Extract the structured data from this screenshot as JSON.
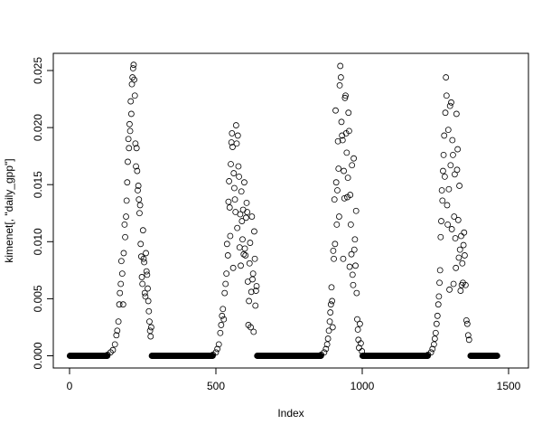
{
  "chart_data": {
    "type": "scatter",
    "title": "",
    "xlabel": "Index",
    "ylabel": "kimenet[, \"daily_gpp\"]",
    "xlim": [
      0,
      1500
    ],
    "ylim": [
      0,
      0.025
    ],
    "x_ticks": [
      "0",
      "500",
      "1000",
      "1500"
    ],
    "y_ticks": [
      "0.000",
      "0.005",
      "0.010",
      "0.015",
      "0.020",
      "0.025"
    ],
    "grid": false,
    "marker": "open-circle",
    "zero_index_ranges": [
      [
        1,
        129
      ],
      [
        281,
        489
      ],
      [
        641,
        859
      ],
      [
        1001,
        1224
      ],
      [
        1370,
        1461
      ]
    ],
    "points": [
      [
        130,
        0.0001
      ],
      [
        140,
        0.0003
      ],
      [
        148,
        0.0005
      ],
      [
        155,
        0.001
      ],
      [
        160,
        0.0018
      ],
      [
        163,
        0.0022
      ],
      [
        167,
        0.003
      ],
      [
        170,
        0.0045
      ],
      [
        172,
        0.0055
      ],
      [
        175,
        0.0063
      ],
      [
        177,
        0.0083
      ],
      [
        180,
        0.0072
      ],
      [
        183,
        0.0045
      ],
      [
        185,
        0.009
      ],
      [
        188,
        0.0115
      ],
      [
        190,
        0.0104
      ],
      [
        193,
        0.0122
      ],
      [
        195,
        0.0136
      ],
      [
        197,
        0.0152
      ],
      [
        199,
        0.017
      ],
      [
        201,
        0.019
      ],
      [
        203,
        0.0182
      ],
      [
        205,
        0.0203
      ],
      [
        207,
        0.0197
      ],
      [
        209,
        0.0223
      ],
      [
        211,
        0.0212
      ],
      [
        213,
        0.0238
      ],
      [
        215,
        0.0244
      ],
      [
        217,
        0.0252
      ],
      [
        219,
        0.0255
      ],
      [
        221,
        0.0242
      ],
      [
        223,
        0.0228
      ],
      [
        225,
        0.0186
      ],
      [
        227,
        0.0166
      ],
      [
        229,
        0.0182
      ],
      [
        231,
        0.0162
      ],
      [
        233,
        0.0145
      ],
      [
        235,
        0.0149
      ],
      [
        237,
        0.0137
      ],
      [
        239,
        0.0125
      ],
      [
        241,
        0.0132
      ],
      [
        243,
        0.0098
      ],
      [
        245,
        0.0087
      ],
      [
        247,
        0.0069
      ],
      [
        249,
        0.0063
      ],
      [
        251,
        0.011
      ],
      [
        253,
        0.0085
      ],
      [
        255,
        0.0082
      ],
      [
        257,
        0.0055
      ],
      [
        259,
        0.0052
      ],
      [
        261,
        0.009
      ],
      [
        263,
        0.0074
      ],
      [
        265,
        0.0071
      ],
      [
        267,
        0.0059
      ],
      [
        269,
        0.0048
      ],
      [
        271,
        0.0039
      ],
      [
        273,
        0.003
      ],
      [
        275,
        0.0022
      ],
      [
        277,
        0.0017
      ],
      [
        279,
        0.0025
      ],
      [
        490,
        0.0001
      ],
      [
        500,
        0.0003
      ],
      [
        505,
        0.0006
      ],
      [
        510,
        0.001
      ],
      [
        515,
        0.002
      ],
      [
        518,
        0.0027
      ],
      [
        521,
        0.0035
      ],
      [
        524,
        0.0041
      ],
      [
        527,
        0.0032
      ],
      [
        530,
        0.0055
      ],
      [
        533,
        0.0063
      ],
      [
        536,
        0.0072
      ],
      [
        538,
        0.0098
      ],
      [
        541,
        0.0088
      ],
      [
        543,
        0.0135
      ],
      [
        545,
        0.0153
      ],
      [
        547,
        0.013
      ],
      [
        549,
        0.0105
      ],
      [
        551,
        0.0168
      ],
      [
        553,
        0.0187
      ],
      [
        555,
        0.0195
      ],
      [
        557,
        0.0183
      ],
      [
        559,
        0.0077
      ],
      [
        561,
        0.016
      ],
      [
        563,
        0.0147
      ],
      [
        565,
        0.0137
      ],
      [
        567,
        0.0126
      ],
      [
        569,
        0.0202
      ],
      [
        571,
        0.0186
      ],
      [
        573,
        0.0112
      ],
      [
        575,
        0.0193
      ],
      [
        577,
        0.0166
      ],
      [
        579,
        0.0157
      ],
      [
        581,
        0.0095
      ],
      [
        583,
        0.0124
      ],
      [
        585,
        0.0079
      ],
      [
        587,
        0.0144
      ],
      [
        589,
        0.0118
      ],
      [
        591,
        0.0102
      ],
      [
        593,
        0.0128
      ],
      [
        595,
        0.0089
      ],
      [
        597,
        0.0152
      ],
      [
        599,
        0.0094
      ],
      [
        601,
        0.0088
      ],
      [
        603,
        0.0121
      ],
      [
        605,
        0.0134
      ],
      [
        607,
        0.0126
      ],
      [
        609,
        0.0065
      ],
      [
        611,
        0.0027
      ],
      [
        613,
        0.0048
      ],
      [
        615,
        0.0081
      ],
      [
        617,
        0.0099
      ],
      [
        619,
        0.0025
      ],
      [
        621,
        0.0056
      ],
      [
        623,
        0.0122
      ],
      [
        625,
        0.0067
      ],
      [
        627,
        0.0072
      ],
      [
        629,
        0.0021
      ],
      [
        631,
        0.0109
      ],
      [
        633,
        0.0085
      ],
      [
        635,
        0.0044
      ],
      [
        637,
        0.0057
      ],
      [
        639,
        0.0061
      ],
      [
        860,
        0.0001
      ],
      [
        870,
        0.0003
      ],
      [
        876,
        0.0006
      ],
      [
        880,
        0.001
      ],
      [
        883,
        0.0015
      ],
      [
        886,
        0.0022
      ],
      [
        889,
        0.003
      ],
      [
        891,
        0.0038
      ],
      [
        893,
        0.0045
      ],
      [
        895,
        0.006
      ],
      [
        897,
        0.0048
      ],
      [
        899,
        0.0025
      ],
      [
        901,
        0.0092
      ],
      [
        903,
        0.0085
      ],
      [
        905,
        0.0137
      ],
      [
        907,
        0.0098
      ],
      [
        909,
        0.0215
      ],
      [
        911,
        0.0152
      ],
      [
        913,
        0.0115
      ],
      [
        915,
        0.0145
      ],
      [
        917,
        0.0188
      ],
      [
        919,
        0.0164
      ],
      [
        921,
        0.0122
      ],
      [
        923,
        0.0237
      ],
      [
        925,
        0.0254
      ],
      [
        927,
        0.0244
      ],
      [
        929,
        0.0205
      ],
      [
        931,
        0.0193
      ],
      [
        933,
        0.0189
      ],
      [
        935,
        0.0085
      ],
      [
        937,
        0.0162
      ],
      [
        939,
        0.0138
      ],
      [
        941,
        0.0226
      ],
      [
        943,
        0.0228
      ],
      [
        945,
        0.0195
      ],
      [
        947,
        0.0178
      ],
      [
        949,
        0.0139
      ],
      [
        951,
        0.0156
      ],
      [
        953,
        0.0213
      ],
      [
        955,
        0.0197
      ],
      [
        957,
        0.0078
      ],
      [
        959,
        0.0141
      ],
      [
        961,
        0.0115
      ],
      [
        963,
        0.0089
      ],
      [
        965,
        0.0167
      ],
      [
        967,
        0.0071
      ],
      [
        969,
        0.0062
      ],
      [
        971,
        0.0173
      ],
      [
        973,
        0.0093
      ],
      [
        975,
        0.0102
      ],
      [
        977,
        0.0079
      ],
      [
        979,
        0.0127
      ],
      [
        981,
        0.0055
      ],
      [
        983,
        0.0032
      ],
      [
        985,
        0.0023
      ],
      [
        987,
        0.0014
      ],
      [
        989,
        0.0007
      ],
      [
        992,
        0.0028
      ],
      [
        995,
        0.0011
      ],
      [
        999,
        0.0004
      ],
      [
        1225,
        0.0001
      ],
      [
        1235,
        0.0003
      ],
      [
        1240,
        0.0006
      ],
      [
        1245,
        0.001
      ],
      [
        1248,
        0.0015
      ],
      [
        1251,
        0.002
      ],
      [
        1254,
        0.0028
      ],
      [
        1257,
        0.0035
      ],
      [
        1260,
        0.0045
      ],
      [
        1262,
        0.0052
      ],
      [
        1264,
        0.0064
      ],
      [
        1266,
        0.0075
      ],
      [
        1268,
        0.0104
      ],
      [
        1270,
        0.0118
      ],
      [
        1272,
        0.0145
      ],
      [
        1274,
        0.0136
      ],
      [
        1276,
        0.0162
      ],
      [
        1278,
        0.0176
      ],
      [
        1280,
        0.0193
      ],
      [
        1282,
        0.0157
      ],
      [
        1284,
        0.0213
      ],
      [
        1286,
        0.0244
      ],
      [
        1288,
        0.0228
      ],
      [
        1290,
        0.0132
      ],
      [
        1292,
        0.0115
      ],
      [
        1294,
        0.0198
      ],
      [
        1296,
        0.0146
      ],
      [
        1298,
        0.0058
      ],
      [
        1300,
        0.0219
      ],
      [
        1302,
        0.0167
      ],
      [
        1304,
        0.0222
      ],
      [
        1306,
        0.0111
      ],
      [
        1308,
        0.0189
      ],
      [
        1310,
        0.0176
      ],
      [
        1312,
        0.0063
      ],
      [
        1314,
        0.0122
      ],
      [
        1316,
        0.0159
      ],
      [
        1318,
        0.0103
      ],
      [
        1320,
        0.0077
      ],
      [
        1322,
        0.0212
      ],
      [
        1324,
        0.0163
      ],
      [
        1326,
        0.0181
      ],
      [
        1328,
        0.0119
      ],
      [
        1330,
        0.0086
      ],
      [
        1332,
        0.0149
      ],
      [
        1334,
        0.0093
      ],
      [
        1336,
        0.0057
      ],
      [
        1338,
        0.0105
      ],
      [
        1340,
        0.0062
      ],
      [
        1342,
        0.0081
      ],
      [
        1344,
        0.0064
      ],
      [
        1346,
        0.0097
      ],
      [
        1348,
        0.0108
      ],
      [
        1350,
        0.0088
      ],
      [
        1353,
        0.0062
      ],
      [
        1356,
        0.0031
      ],
      [
        1359,
        0.0028
      ],
      [
        1362,
        0.0018
      ],
      [
        1365,
        0.0014
      ]
    ]
  }
}
